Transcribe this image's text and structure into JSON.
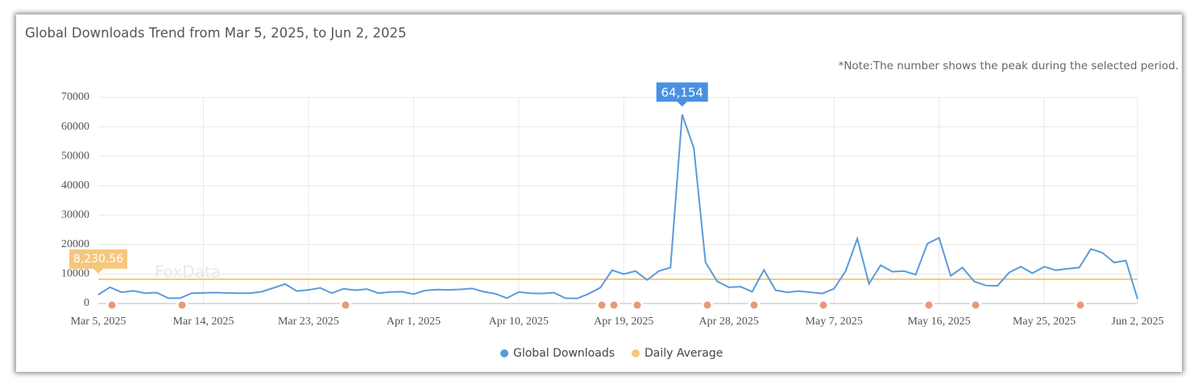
{
  "chart_data": {
    "type": "line",
    "title": "Global Downloads Trend from Mar 5, 2025, to Jun 2, 2025",
    "note": "*Note:The number shows the peak during the selected period.",
    "watermark": "FoxData",
    "categories": [
      "Mar 5, 2025",
      null,
      null,
      null,
      null,
      null,
      null,
      null,
      null,
      "Mar 14, 2025",
      null,
      null,
      null,
      null,
      null,
      null,
      null,
      null,
      "Mar 23, 2025",
      null,
      null,
      null,
      null,
      null,
      null,
      null,
      null,
      "Apr 1, 2025",
      null,
      null,
      null,
      null,
      null,
      null,
      null,
      null,
      "Apr 10, 2025",
      null,
      null,
      null,
      null,
      null,
      null,
      null,
      null,
      "Apr 19, 2025",
      null,
      null,
      null,
      null,
      null,
      null,
      null,
      null,
      "Apr 28, 2025",
      null,
      null,
      null,
      null,
      null,
      null,
      null,
      null,
      "May 7, 2025",
      null,
      null,
      null,
      null,
      null,
      null,
      null,
      null,
      "May 16, 2025",
      null,
      null,
      null,
      null,
      null,
      null,
      null,
      null,
      "May 25, 2025",
      null,
      null,
      null,
      null,
      null,
      null,
      null,
      "Jun 2, 2025"
    ],
    "series": [
      {
        "name": "Global Downloads",
        "color": "#5b9bd9",
        "values": [
          3000,
          5500,
          3800,
          4300,
          3500,
          3700,
          1800,
          1800,
          3500,
          3600,
          3700,
          3600,
          3500,
          3500,
          4000,
          5300,
          6600,
          4200,
          4600,
          5300,
          3500,
          5000,
          4500,
          4900,
          3500,
          3900,
          4000,
          3200,
          4400,
          4700,
          4600,
          4800,
          5100,
          4000,
          3300,
          1800,
          3900,
          3500,
          3400,
          3700,
          1800,
          1700,
          3300,
          5400,
          11300,
          10000,
          11000,
          8000,
          11000,
          12200,
          64154,
          52800,
          14000,
          7500,
          5500,
          5700,
          4000,
          11400,
          4500,
          3800,
          4200,
          3800,
          3400,
          5000,
          11000,
          22000,
          6700,
          13000,
          10800,
          11000,
          9800,
          20300,
          22300,
          9400,
          12200,
          7500,
          6100,
          6000,
          10500,
          12500,
          10300,
          12500,
          11300,
          11800,
          12200,
          18500,
          17200,
          13900,
          14600,
          1500
        ],
        "value_labels": [
          null,
          null,
          null,
          null,
          null,
          null,
          null,
          null,
          null,
          null,
          null,
          null,
          null,
          null,
          null,
          null,
          null,
          null,
          null,
          null,
          null,
          null,
          null,
          null,
          null,
          null,
          null,
          null,
          null,
          null,
          null,
          null,
          null,
          null,
          null,
          null,
          null,
          null,
          null,
          null,
          null,
          null,
          null,
          null,
          null,
          null,
          null,
          null,
          null,
          null,
          "64,154",
          null,
          null,
          null,
          null,
          null,
          null,
          null,
          null,
          null,
          null,
          null,
          null,
          null,
          null,
          null,
          null,
          null,
          null,
          null,
          null,
          null,
          null,
          null,
          null,
          null,
          null,
          null,
          null,
          null,
          null,
          null,
          null,
          null,
          null,
          null,
          null,
          null,
          null,
          null
        ]
      }
    ],
    "average_line": {
      "name": "Daily Average",
      "color": "#f5c77e",
      "value": 8230.56,
      "value_label": "8,230.56"
    },
    "ylim": [
      0,
      70000
    ],
    "yticks": [
      0,
      10000,
      20000,
      30000,
      40000,
      50000,
      60000,
      70000
    ],
    "grid": true
  }
}
